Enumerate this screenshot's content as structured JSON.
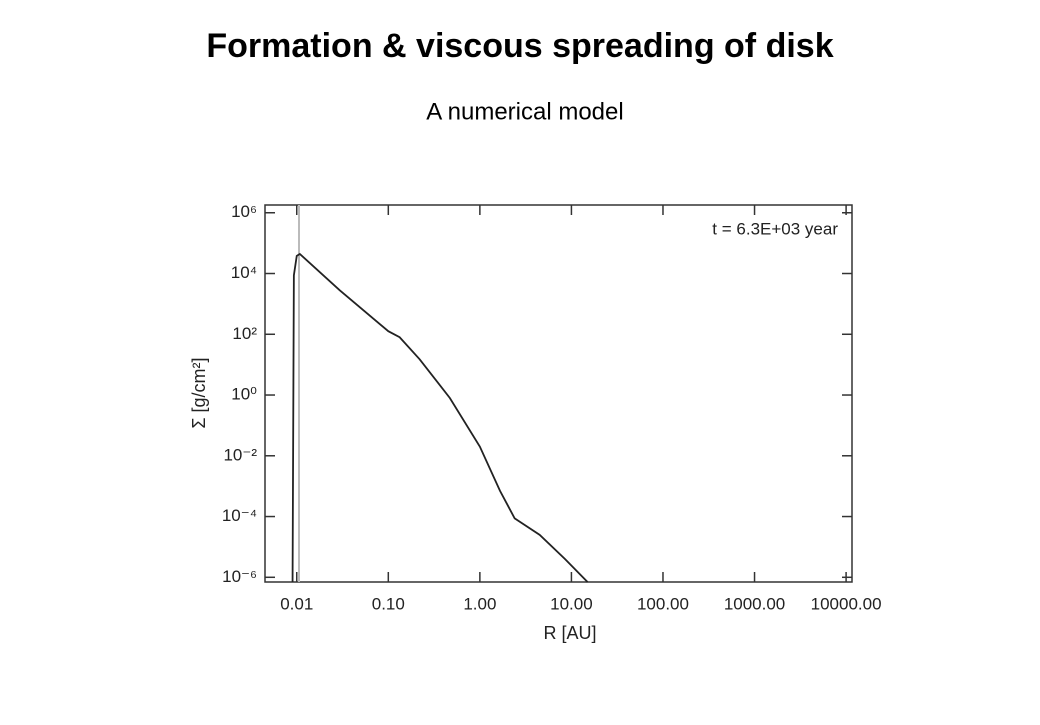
{
  "chart_data": {
    "type": "line",
    "title": "Formation & viscous spreading of disk",
    "subtitle": "A numerical model",
    "x_label": "R [AU]",
    "y_label": "Σ [g/cm²]",
    "annotation": "t = 6.3E+03 year",
    "x_log": true,
    "y_log": true,
    "grid": false,
    "xlim": [
      0.0045,
      11600
    ],
    "ylim": [
      7e-07,
      1800000.0
    ],
    "xticks": [
      0.01,
      {
        "value": 0.1,
        "label": "0.10"
      },
      {
        "value": 1,
        "label": "1.00"
      },
      {
        "value": 10,
        "label": "10.00"
      },
      {
        "value": 100,
        "label": "100.00"
      },
      {
        "value": 1000,
        "label": "1000.00"
      },
      {
        "value": 10000,
        "label": "10000.00"
      }
    ],
    "yticks": [
      {
        "value": 1e-06,
        "label": "10⁻⁶"
      },
      {
        "value": 0.0001,
        "label": "10⁻⁴"
      },
      {
        "value": 0.01,
        "label": "10⁻²"
      },
      {
        "value": 1,
        "label": "10⁰"
      },
      {
        "value": 100,
        "label": "10²"
      },
      {
        "value": 10000,
        "label": "10⁴"
      },
      {
        "value": 1000000,
        "label": "10⁶"
      }
    ],
    "series": [
      {
        "color": "#222222",
        "x": [
          0.009,
          0.0093,
          0.01,
          0.0108,
          0.0295,
          0.1,
          0.133,
          0.22,
          0.47,
          1.0,
          1.66,
          2.4,
          4.5,
          8.5,
          15
        ],
        "values": [
          7e-07,
          8700,
          38000,
          44000,
          2800,
          126,
          80,
          15,
          0.8,
          0.02,
          0.0007,
          8.7e-05,
          2.5e-05,
          4e-06,
          7e-07
        ]
      }
    ]
  }
}
